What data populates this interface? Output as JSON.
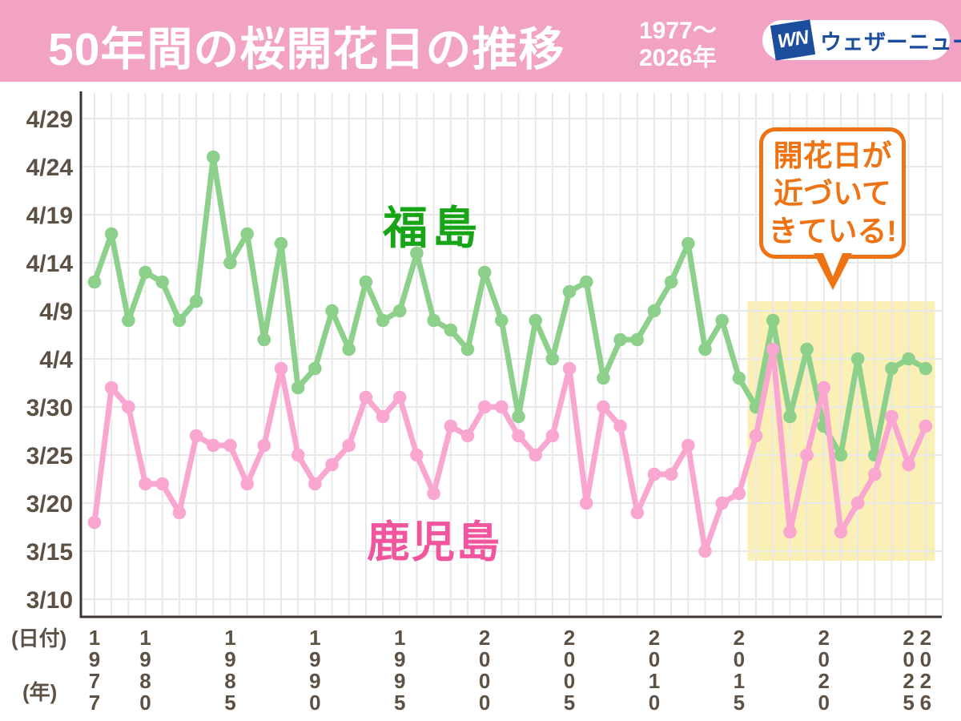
{
  "header": {
    "title": "50年間の桜開花日の推移",
    "subtitle_line1": "1977〜",
    "subtitle_line2": "2026年",
    "logo_mark": "WN",
    "logo_text": "ウェザーニュース"
  },
  "callout": {
    "line1": "開花日が",
    "line2": "近づいて",
    "line3": "きている!"
  },
  "axis_captions": {
    "y": "(日付)",
    "x": "(年)"
  },
  "series_labels": {
    "fukushima": "福島",
    "kagoshima": "鹿児島"
  },
  "colors": {
    "header_pink": "#F2A3C4",
    "logo_blue": "#1C4E9D",
    "fukushima_line": "#8CD08C",
    "fukushima_label": "#17A517",
    "kagoshima_line": "#F9A6D0",
    "kagoshima_label": "#F0559D",
    "grid": "#E8E8E8",
    "axis": "#3B3430",
    "tick_text": "#5D5146",
    "highlight": "#FAF0B5",
    "callout_orange": "#EE7315"
  },
  "chart_data": {
    "type": "line",
    "title": "50年間の桜開花日の推移（1977〜2026年）",
    "xlabel": "(年)",
    "ylabel": "(日付)",
    "grid": true,
    "x": [
      1977,
      1978,
      1979,
      1980,
      1981,
      1982,
      1983,
      1984,
      1985,
      1986,
      1987,
      1988,
      1989,
      1990,
      1991,
      1992,
      1993,
      1994,
      1995,
      1996,
      1997,
      1998,
      1999,
      2000,
      2001,
      2002,
      2003,
      2004,
      2005,
      2006,
      2007,
      2008,
      2009,
      2010,
      2011,
      2012,
      2013,
      2014,
      2015,
      2016,
      2017,
      2018,
      2019,
      2020,
      2021,
      2022,
      2023,
      2024,
      2025,
      2026
    ],
    "x_tick_years": [
      1977,
      1980,
      1985,
      1990,
      1995,
      2000,
      2005,
      2010,
      2015,
      2020,
      2025,
      2026
    ],
    "y_ticks": [
      "4/29",
      "4/24",
      "4/19",
      "4/14",
      "4/9",
      "4/4",
      "3/30",
      "3/25",
      "3/20",
      "3/15",
      "3/10"
    ],
    "ylim": [
      "3/10",
      "4/29"
    ],
    "series": [
      {
        "name": "福島",
        "color_key": "fukushima_line",
        "values": [
          "4/12",
          "4/17",
          "4/8",
          "4/13",
          "4/12",
          "4/8",
          "4/10",
          "4/25",
          "4/14",
          "4/17",
          "4/6",
          "4/16",
          "4/1",
          "4/3",
          "4/9",
          "4/5",
          "4/12",
          "4/8",
          "4/9",
          "4/15",
          "4/8",
          "4/7",
          "4/5",
          "4/13",
          "4/8",
          "3/29",
          "4/8",
          "4/4",
          "4/11",
          "4/12",
          "4/2",
          "4/6",
          "4/6",
          "4/9",
          "4/12",
          "4/16",
          "4/5",
          "4/8",
          "4/2",
          "3/30",
          "4/8",
          "3/29",
          "4/5",
          "3/28",
          "3/25",
          "4/4",
          "3/25",
          "4/3",
          "4/4",
          "4/3"
        ]
      },
      {
        "name": "鹿児島",
        "color_key": "kagoshima_line",
        "values": [
          "3/18",
          "4/1",
          "3/30",
          "3/22",
          "3/22",
          "3/19",
          "3/27",
          "3/26",
          "3/26",
          "3/22",
          "3/26",
          "4/3",
          "3/25",
          "3/22",
          "3/24",
          "3/26",
          "3/31",
          "3/29",
          "3/31",
          "3/25",
          "3/21",
          "3/28",
          "3/27",
          "3/30",
          "3/30",
          "3/27",
          "3/25",
          "3/27",
          "4/3",
          "3/20",
          "3/30",
          "3/28",
          "3/19",
          "3/23",
          "3/23",
          "3/26",
          "3/15",
          "3/20",
          "3/21",
          "3/27",
          "4/5",
          "3/17",
          "3/25",
          "4/1",
          "3/17",
          "3/20",
          "3/23",
          "3/29",
          "3/24",
          "3/28"
        ]
      }
    ],
    "highlight": {
      "from_year": 2015.5,
      "to_year": 2026.55,
      "top_date": "4/10",
      "bottom_date": "3/14",
      "label": "開花日が近づいてきている!"
    }
  }
}
